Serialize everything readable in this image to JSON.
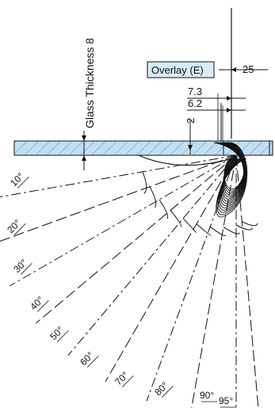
{
  "labels": {
    "glass_thickness": "Glass Thickness 8",
    "overlay": "Overlay (E)",
    "dim_25": "25",
    "dim_7_3": "7.3",
    "dim_6_2": "6.2",
    "dim_2": "2"
  },
  "angles": [
    "10°",
    "20°",
    "30°",
    "40°",
    "50°",
    "60°",
    "70°",
    "80°",
    "90°",
    "95°"
  ],
  "colors": {
    "glass_fill": "#bfe0f2",
    "overlay_fill": "#d6ecf8",
    "line": "#111111"
  }
}
